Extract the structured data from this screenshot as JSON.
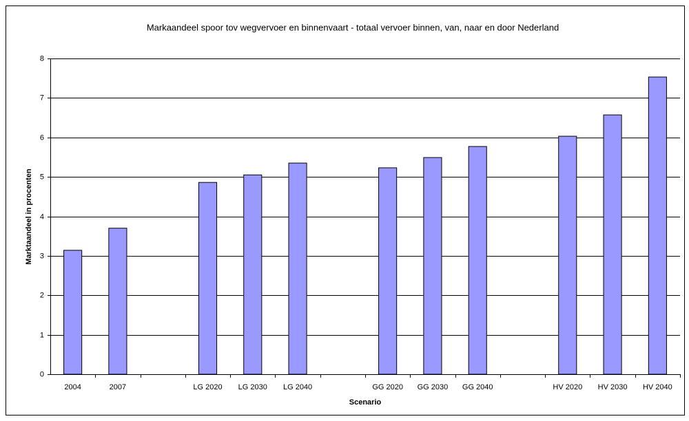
{
  "chart_data": {
    "type": "bar",
    "title": "Markaandeel spoor tov wegvervoer en binnenvaart - totaal vervoer binnen, van, naar en door Nederland",
    "x_label": "Scenario",
    "y_label": "Marktaandeel in procenten",
    "categories": [
      "2004",
      "2007",
      null,
      "LG 2020",
      "LG 2030",
      "LG 2040",
      null,
      "GG 2020",
      "GG 2030",
      "GG 2040",
      null,
      "HV 2020",
      "HV 2030",
      "HV 2040"
    ],
    "values": [
      3.14,
      3.7,
      null,
      4.86,
      5.05,
      5.35,
      null,
      5.23,
      5.49,
      5.77,
      null,
      6.03,
      6.57,
      7.53
    ],
    "color": "#9999ff",
    "ylim": [
      0,
      8
    ],
    "yticks": [
      0,
      1,
      2,
      3,
      4,
      5,
      6,
      7,
      8
    ],
    "grid": true
  }
}
